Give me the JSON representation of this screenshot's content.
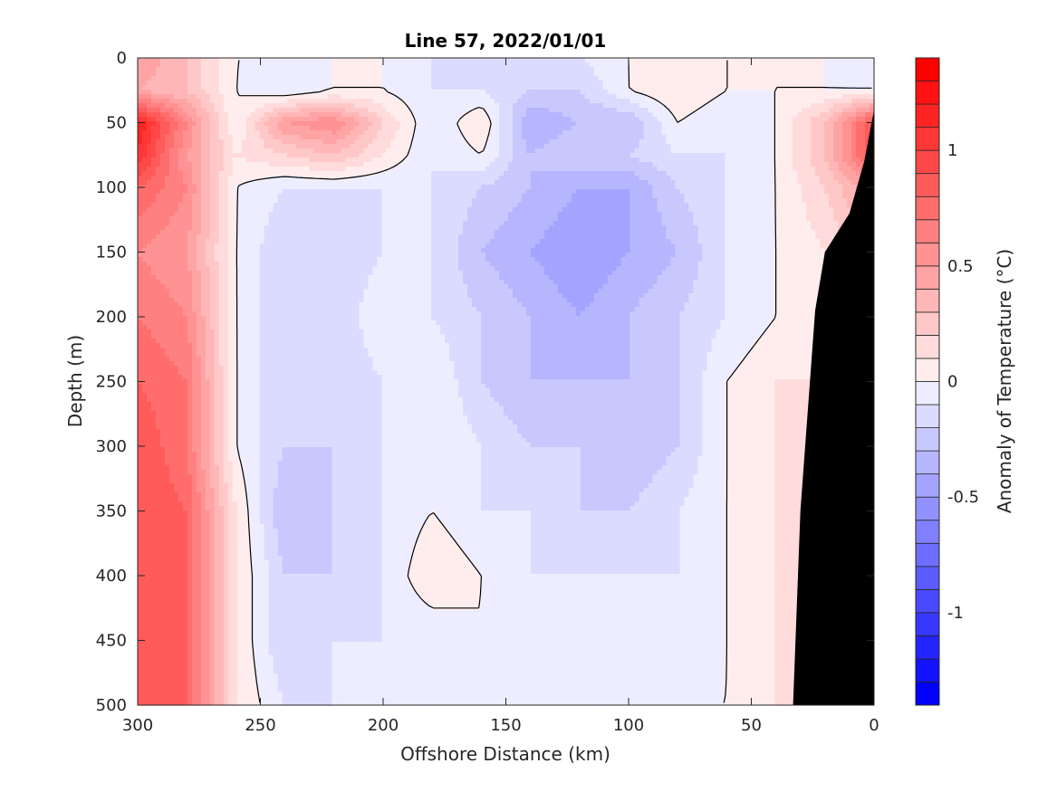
{
  "chart_data": {
    "type": "heatmap",
    "title": "Line 57, 2022/01/01",
    "xlabel": "Offshore Distance (km)",
    "ylabel": "Depth (m)",
    "colorbar_label": "Anomaly of Temperature (°C)",
    "xlim": [
      300,
      0
    ],
    "ylim": [
      0,
      500
    ],
    "x_reversed": true,
    "y_reversed": true,
    "x_ticks": [
      "300",
      "250",
      "200",
      "150",
      "100",
      "50",
      "0"
    ],
    "x_tick_values": [
      300,
      250,
      200,
      150,
      100,
      50,
      0
    ],
    "y_ticks": [
      "0",
      "50",
      "100",
      "150",
      "200",
      "250",
      "300",
      "350",
      "400",
      "450",
      "500"
    ],
    "y_tick_values": [
      0,
      50,
      100,
      150,
      200,
      250,
      300,
      350,
      400,
      450,
      500
    ],
    "colorbar_ticks": [
      "1",
      "0.5",
      "0",
      "-0.5",
      "-1"
    ],
    "colorbar_tick_values": [
      1,
      0.5,
      0,
      -0.5,
      -1
    ],
    "color_range": [
      -1.4,
      1.4
    ],
    "color_levels": 28,
    "zero_contour": true,
    "bathymetry_mask_color": "#000000",
    "x": [
      300,
      280,
      260,
      240,
      220,
      200,
      180,
      160,
      140,
      120,
      100,
      80,
      60,
      40,
      20,
      0
    ],
    "y": [
      0,
      25,
      50,
      75,
      100,
      150,
      200,
      250,
      300,
      350,
      400,
      450,
      500
    ],
    "z": [
      [
        0.5,
        0.3,
        0.0,
        0.0,
        0.0,
        0.0,
        -0.1,
        -0.2,
        -0.2,
        -0.1,
        0.0,
        0.1,
        0.0,
        0.0,
        0.0,
        -0.1
      ],
      [
        0.4,
        0.3,
        0.0,
        -0.1,
        0.0,
        0.0,
        -0.1,
        -0.1,
        -0.2,
        -0.2,
        0.0,
        0.1,
        0.0,
        0.0,
        0.0,
        0.0
      ],
      [
        1.2,
        0.6,
        0.0,
        0.5,
        0.6,
        0.2,
        -0.1,
        0.1,
        -0.4,
        -0.3,
        -0.3,
        0.0,
        -0.1,
        0.0,
        0.3,
        0.9
      ],
      [
        1.1,
        0.5,
        0.1,
        0.2,
        0.3,
        0.1,
        -0.1,
        0.0,
        -0.3,
        -0.2,
        -0.2,
        -0.1,
        -0.1,
        0.0,
        0.3,
        0.9
      ],
      [
        0.8,
        0.6,
        0.0,
        -0.1,
        -0.1,
        -0.1,
        -0.1,
        -0.2,
        -0.3,
        -0.4,
        -0.4,
        -0.2,
        -0.1,
        0.0,
        0.2,
        0.5
      ],
      [
        0.6,
        0.5,
        0.0,
        -0.2,
        -0.2,
        -0.1,
        -0.1,
        -0.3,
        -0.4,
        -0.5,
        -0.4,
        -0.3,
        -0.1,
        0.0,
        0.1,
        0.3
      ],
      [
        0.7,
        0.6,
        0.0,
        -0.2,
        -0.2,
        0.0,
        -0.1,
        -0.2,
        -0.3,
        -0.4,
        -0.3,
        -0.2,
        -0.1,
        0.0,
        0.1,
        0.2
      ],
      [
        0.8,
        0.7,
        0.0,
        -0.2,
        -0.2,
        -0.1,
        0.0,
        -0.2,
        -0.3,
        -0.3,
        -0.3,
        -0.2,
        0.0,
        0.1,
        0.1,
        0.1
      ],
      [
        0.9,
        0.7,
        0.0,
        -0.2,
        -0.2,
        -0.1,
        0.0,
        -0.1,
        -0.2,
        -0.2,
        -0.3,
        -0.2,
        0.0,
        0.1,
        0.1,
        0.1
      ],
      [
        0.9,
        0.8,
        0.1,
        -0.3,
        -0.2,
        -0.1,
        0.0,
        -0.1,
        -0.1,
        -0.2,
        -0.2,
        -0.1,
        0.0,
        0.1,
        0.1,
        0.1
      ],
      [
        0.9,
        0.8,
        0.1,
        -0.2,
        -0.2,
        -0.1,
        0.1,
        0.0,
        -0.1,
        -0.1,
        -0.1,
        -0.1,
        0.0,
        0.1,
        0.1,
        0.1
      ],
      [
        0.9,
        0.8,
        0.1,
        -0.2,
        -0.1,
        -0.1,
        -0.1,
        0.0,
        -0.1,
        -0.1,
        -0.1,
        -0.1,
        0.0,
        0.1,
        0.1,
        0.1
      ],
      [
        0.9,
        0.8,
        0.1,
        -0.1,
        -0.1,
        -0.1,
        -0.1,
        0.0,
        -0.1,
        -0.1,
        -0.1,
        0.0,
        0.0,
        0.1,
        0.1,
        0.1
      ]
    ],
    "bathymetry": [
      [
        33,
        500
      ],
      [
        30,
        350
      ],
      [
        24,
        195
      ],
      [
        20,
        150
      ],
      [
        10,
        120
      ],
      [
        4,
        80
      ],
      [
        0,
        40
      ]
    ]
  }
}
